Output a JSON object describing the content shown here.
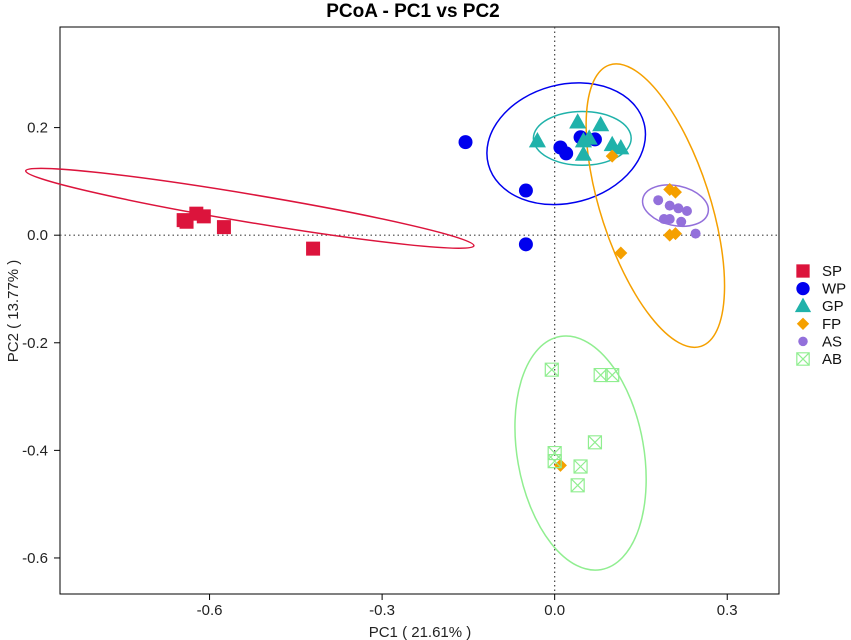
{
  "chart_data": {
    "type": "scatter",
    "title": "PCoA - PC1 vs PC2",
    "xlabel": "PC1 ( 21.61% )",
    "ylabel": "PC2 ( 13.77% )",
    "xlim": [
      -0.86,
      0.39
    ],
    "ylim": [
      -0.667,
      0.387
    ],
    "xticks": [
      -0.6,
      -0.3,
      0.0,
      0.3
    ],
    "xtick_labels": [
      "-0.6",
      "-0.3",
      "0.0",
      "0.3"
    ],
    "yticks": [
      0.2,
      0.0,
      -0.2,
      -0.4,
      -0.6
    ],
    "ytick_labels": [
      "0.2",
      "0.0",
      "-0.2",
      "-0.4",
      "-0.6"
    ],
    "reference_lines": {
      "x": 0,
      "y": 0,
      "style": "dotted"
    },
    "legend_position": "right",
    "series": [
      {
        "name": "SP",
        "color": "#dc143c",
        "marker": "square",
        "points": [
          [
            -0.64,
            0.025
          ],
          [
            -0.623,
            0.04
          ],
          [
            -0.61,
            0.035
          ],
          [
            -0.645,
            0.028
          ],
          [
            -0.575,
            0.015
          ],
          [
            -0.42,
            -0.025
          ]
        ],
        "ellipse": {
          "cx": -0.53,
          "cy": 0.05,
          "rx": 0.395,
          "ry": 0.026,
          "angle": -9.5
        }
      },
      {
        "name": "WP",
        "color": "#0000ee",
        "marker": "circle",
        "points": [
          [
            -0.155,
            0.173
          ],
          [
            -0.05,
            0.083
          ],
          [
            -0.05,
            -0.017
          ],
          [
            0.01,
            0.163
          ],
          [
            0.02,
            0.152
          ],
          [
            0.045,
            0.182
          ],
          [
            0.07,
            0.178
          ]
        ],
        "ellipse": {
          "cx": 0.02,
          "cy": 0.17,
          "rx": 0.14,
          "ry": 0.11,
          "angle": 15
        }
      },
      {
        "name": "GP",
        "color": "#20b2aa",
        "marker": "triangle",
        "points": [
          [
            -0.03,
            0.175
          ],
          [
            0.04,
            0.21
          ],
          [
            0.06,
            0.18
          ],
          [
            0.08,
            0.205
          ],
          [
            0.05,
            0.175
          ],
          [
            0.1,
            0.168
          ],
          [
            0.05,
            0.15
          ],
          [
            0.115,
            0.162
          ]
        ],
        "ellipse": {
          "cx": 0.048,
          "cy": 0.18,
          "rx": 0.085,
          "ry": 0.05,
          "angle": 0
        }
      },
      {
        "name": "FP",
        "color": "#f5a000",
        "marker": "diamond",
        "points": [
          [
            0.1,
            0.147
          ],
          [
            0.2,
            0.085
          ],
          [
            0.21,
            0.08
          ],
          [
            0.115,
            -0.033
          ],
          [
            0.2,
            0.0
          ],
          [
            0.21,
            0.003
          ],
          [
            0.01,
            -0.428
          ]
        ],
        "ellipse": {
          "cx": 0.175,
          "cy": 0.055,
          "rx": 0.095,
          "ry": 0.275,
          "angle": 18
        }
      },
      {
        "name": "AS",
        "color": "#9370db",
        "marker": "small-circle",
        "points": [
          [
            0.18,
            0.065
          ],
          [
            0.2,
            0.055
          ],
          [
            0.215,
            0.05
          ],
          [
            0.23,
            0.045
          ],
          [
            0.19,
            0.03
          ],
          [
            0.2,
            0.03
          ],
          [
            0.22,
            0.025
          ],
          [
            0.245,
            0.003
          ]
        ],
        "ellipse": {
          "cx": 0.21,
          "cy": 0.055,
          "rx": 0.058,
          "ry": 0.037,
          "angle": -12
        }
      },
      {
        "name": "AB",
        "color": "#90ee90",
        "marker": "boxed-x",
        "points": [
          [
            -0.005,
            -0.25
          ],
          [
            0.08,
            -0.26
          ],
          [
            0.1,
            -0.26
          ],
          [
            0.07,
            -0.385
          ],
          [
            0.0,
            -0.405
          ],
          [
            0.0,
            -0.42
          ],
          [
            0.045,
            -0.43
          ],
          [
            0.04,
            -0.465
          ]
        ],
        "ellipse": {
          "cx": 0.045,
          "cy": -0.405,
          "rx": 0.11,
          "ry": 0.22,
          "angle": 10
        }
      }
    ]
  }
}
